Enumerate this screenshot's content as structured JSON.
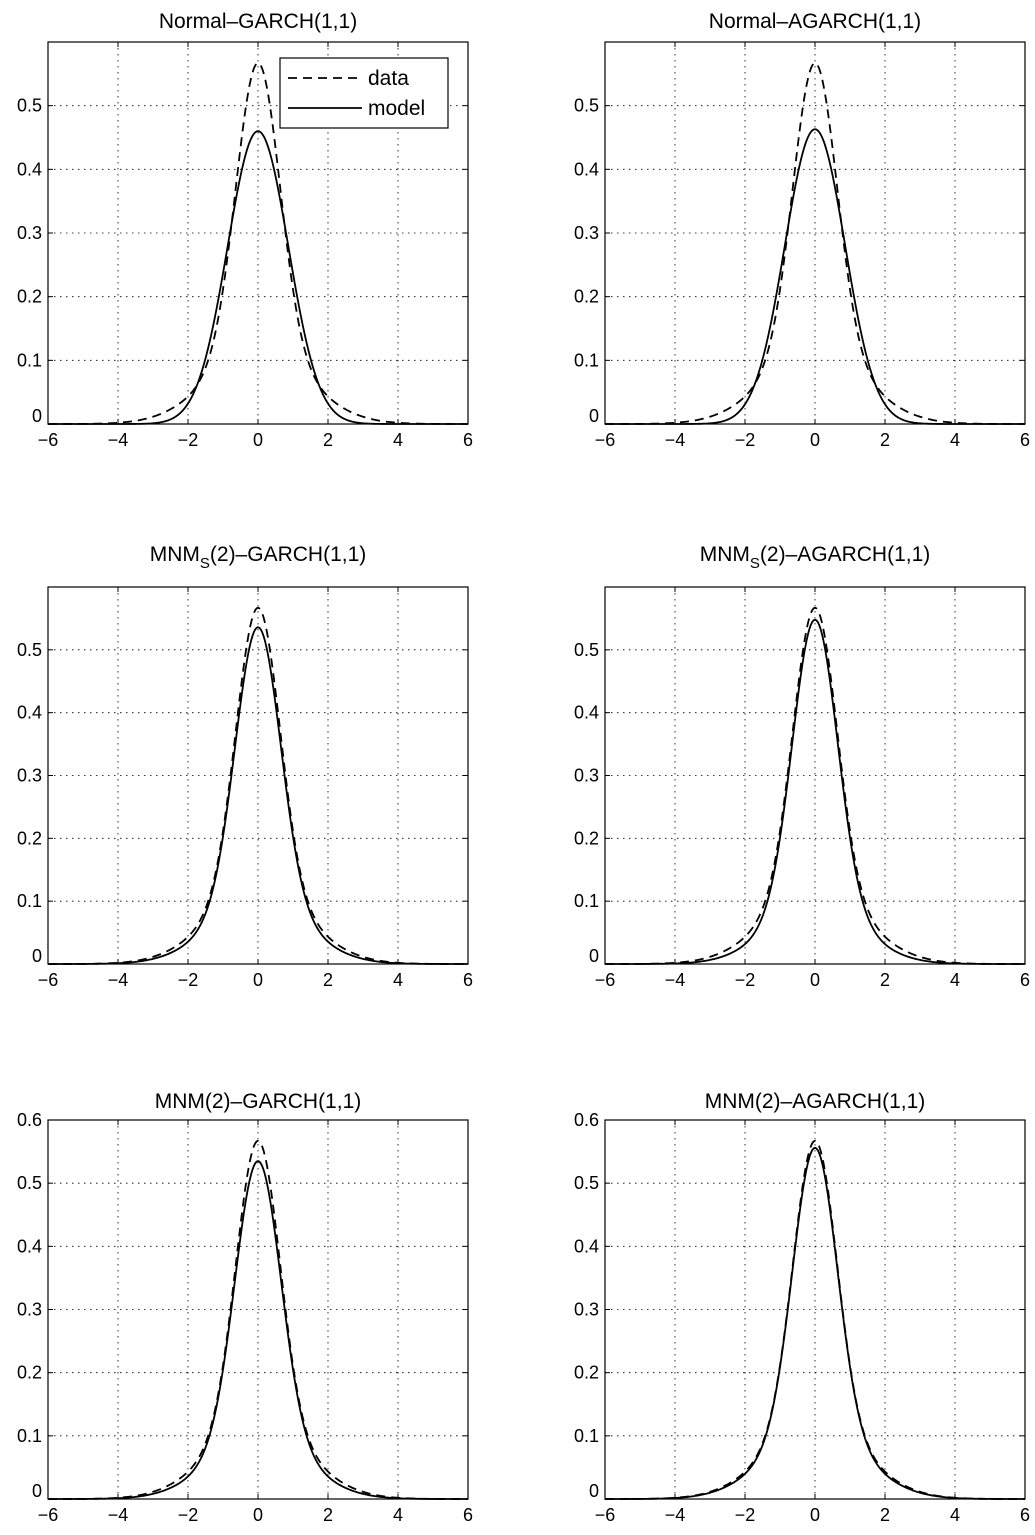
{
  "colors": {
    "background": "#ffffff",
    "line": "#000000",
    "grid": "#000000"
  },
  "chart_data": [
    {
      "type": "line",
      "title": "Normal–GARCH(1,1)",
      "xlim": [
        -6,
        6
      ],
      "ylim": [
        0,
        0.6
      ],
      "xticks": [
        "−6",
        "−4",
        "−2",
        "0",
        "2",
        "4",
        "6"
      ],
      "yticks": [
        "0",
        "0.1",
        "0.2",
        "0.3",
        "0.4",
        "0.5"
      ],
      "grid": true,
      "legend": {
        "placement": "top-right",
        "entries": [
          "data",
          "model"
        ]
      },
      "series": [
        {
          "name": "data",
          "style": "dashed",
          "peak": 0.567,
          "sigma": 0.62,
          "tail_weight": 0.2,
          "tail_sigma": 1.4
        },
        {
          "name": "model",
          "style": "solid",
          "peak": 0.46,
          "sigma": 0.867,
          "tail_weight": 0,
          "tail_sigma": 1.4
        }
      ]
    },
    {
      "type": "line",
      "title": "Normal–AGARCH(1,1)",
      "xlim": [
        -6,
        6
      ],
      "ylim": [
        0,
        0.6
      ],
      "xticks": [
        "−6",
        "−4",
        "−2",
        "0",
        "2",
        "4",
        "6"
      ],
      "yticks": [
        "0",
        "0.1",
        "0.2",
        "0.3",
        "0.4",
        "0.5"
      ],
      "grid": true,
      "series": [
        {
          "name": "data",
          "style": "dashed",
          "peak": 0.567,
          "sigma": 0.62,
          "tail_weight": 0.2,
          "tail_sigma": 1.4
        },
        {
          "name": "model",
          "style": "solid",
          "peak": 0.463,
          "sigma": 0.86,
          "tail_weight": 0,
          "tail_sigma": 1.4
        }
      ]
    },
    {
      "type": "line",
      "title_main": "MNM",
      "title_sub": "S",
      "title_rest": "(2)–GARCH(1,1)",
      "xlim": [
        -6,
        6
      ],
      "ylim": [
        0,
        0.6
      ],
      "xticks": [
        "−6",
        "−4",
        "−2",
        "0",
        "2",
        "4",
        "6"
      ],
      "yticks": [
        "0",
        "0.1",
        "0.2",
        "0.3",
        "0.4",
        "0.5"
      ],
      "grid": true,
      "series": [
        {
          "name": "data",
          "style": "dashed",
          "peak": 0.567,
          "sigma": 0.62,
          "tail_weight": 0.2,
          "tail_sigma": 1.4
        },
        {
          "name": "model",
          "style": "solid",
          "peak": 0.536,
          "sigma": 0.64,
          "tail_weight": 0.18,
          "tail_sigma": 1.35
        }
      ]
    },
    {
      "type": "line",
      "title_main": "MNM",
      "title_sub": "S",
      "title_rest": "(2)–AGARCH(1,1)",
      "xlim": [
        -6,
        6
      ],
      "ylim": [
        0,
        0.6
      ],
      "xticks": [
        "−6",
        "−4",
        "−2",
        "0",
        "2",
        "4",
        "6"
      ],
      "yticks": [
        "0",
        "0.1",
        "0.2",
        "0.3",
        "0.4",
        "0.5"
      ],
      "grid": true,
      "series": [
        {
          "name": "data",
          "style": "dashed",
          "peak": 0.567,
          "sigma": 0.62,
          "tail_weight": 0.2,
          "tail_sigma": 1.4
        },
        {
          "name": "model",
          "style": "solid",
          "peak": 0.548,
          "sigma": 0.635,
          "tail_weight": 0.17,
          "tail_sigma": 1.3
        }
      ]
    },
    {
      "type": "line",
      "title": "MNM(2)–GARCH(1,1)",
      "xlim": [
        -6,
        6
      ],
      "ylim": [
        0,
        0.6
      ],
      "xticks": [
        "−6",
        "−4",
        "−2",
        "0",
        "2",
        "4",
        "6"
      ],
      "yticks": [
        "0",
        "0.1",
        "0.2",
        "0.3",
        "0.4",
        "0.5",
        "0.6"
      ],
      "grid": true,
      "series": [
        {
          "name": "data",
          "style": "dashed",
          "peak": 0.567,
          "sigma": 0.62,
          "tail_weight": 0.2,
          "tail_sigma": 1.4
        },
        {
          "name": "model",
          "style": "solid",
          "peak": 0.535,
          "sigma": 0.645,
          "tail_weight": 0.18,
          "tail_sigma": 1.35
        }
      ]
    },
    {
      "type": "line",
      "title": "MNM(2)–AGARCH(1,1)",
      "xlim": [
        -6,
        6
      ],
      "ylim": [
        0,
        0.6
      ],
      "xticks": [
        "−6",
        "−4",
        "−2",
        "0",
        "2",
        "4",
        "6"
      ],
      "yticks": [
        "0",
        "0.1",
        "0.2",
        "0.3",
        "0.4",
        "0.5",
        "0.6"
      ],
      "grid": true,
      "series": [
        {
          "name": "data",
          "style": "dashed",
          "peak": 0.567,
          "sigma": 0.62,
          "tail_weight": 0.2,
          "tail_sigma": 1.4
        },
        {
          "name": "model",
          "style": "solid",
          "peak": 0.556,
          "sigma": 0.63,
          "tail_weight": 0.19,
          "tail_sigma": 1.38
        }
      ]
    }
  ]
}
